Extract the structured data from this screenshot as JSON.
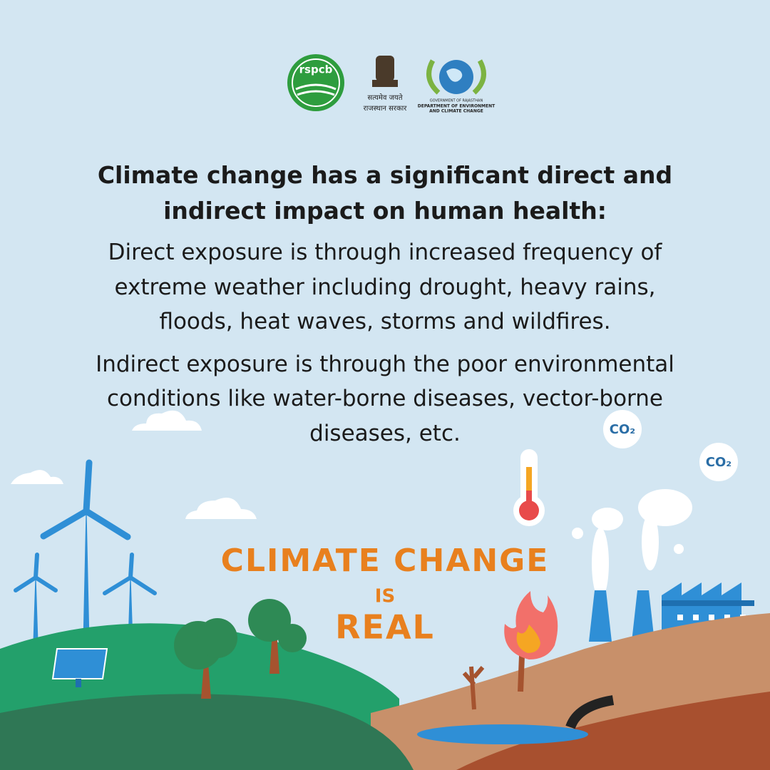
{
  "logos": {
    "rspcb": "rspcb",
    "emblem_motto": "सत्यमेव जयते",
    "emblem_state": "राजस्थान सरकार",
    "dept_government": "GOVERNMENT OF RAJASTHAN",
    "dept_name_lines": [
      "DEPARTMENT OF ENVIRONMENT",
      "AND CLIMATE CHANGE"
    ]
  },
  "heading_lines": [
    "Climate change has a significant direct and",
    "indirect impact on human health:"
  ],
  "paragraphs": [
    [
      "Direct exposure is through increased frequency of",
      "extreme weather including drought, heavy rains,",
      "floods, heat waves, storms and wildfires."
    ],
    [
      "Indirect exposure is through the poor environmental",
      "conditions like water-borne diseases, vector-borne",
      "diseases, etc."
    ]
  ],
  "slogan": {
    "line1": "CLIMATE CHANGE",
    "line2": "IS",
    "line3": "REAL"
  },
  "co2_labels": [
    "CO₂",
    "CO₂"
  ]
}
